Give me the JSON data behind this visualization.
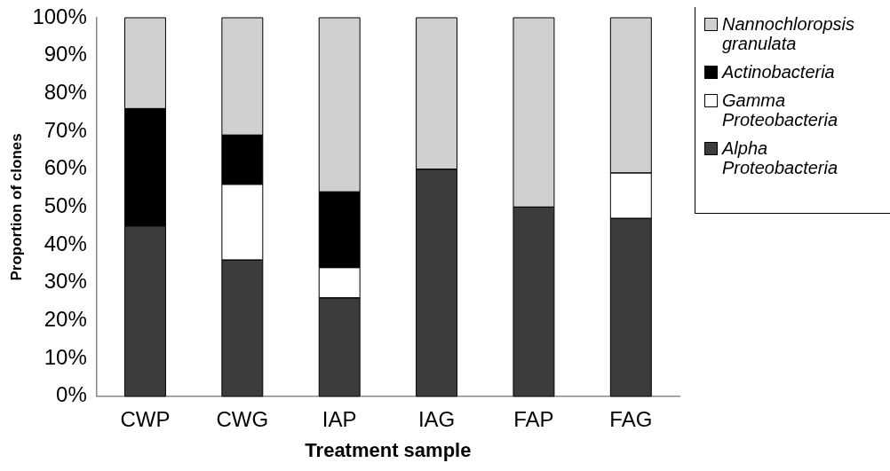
{
  "chart_data": {
    "type": "bar",
    "stacked": true,
    "xlabel": "Treatment sample",
    "ylabel": "Proportion of clones",
    "categories": [
      "CWP",
      "CWG",
      "IAP",
      "IAG",
      "FAP",
      "FAG"
    ],
    "series": [
      {
        "name": "Alpha Proteobacteria",
        "color": "#3c3c3c",
        "values": [
          45,
          36,
          26,
          60,
          50,
          47
        ]
      },
      {
        "name": "Gamma Proteobacteria",
        "color": "#ffffff",
        "values": [
          0,
          20,
          8,
          0,
          0,
          12
        ]
      },
      {
        "name": "Actinobacteria",
        "color": "#000000",
        "values": [
          31,
          13,
          20,
          0,
          0,
          0
        ]
      },
      {
        "name": "Nannochloropsis granulata",
        "color": "#d0d0d0",
        "values": [
          24,
          31,
          46,
          40,
          50,
          41
        ]
      }
    ],
    "ylim": [
      0,
      100
    ],
    "yticks": [
      {
        "value": 0,
        "label": "0%"
      },
      {
        "value": 10,
        "label": "10%"
      },
      {
        "value": 20,
        "label": "20%"
      },
      {
        "value": 30,
        "label": "30%"
      },
      {
        "value": 40,
        "label": "40%"
      },
      {
        "value": 50,
        "label": "50%"
      },
      {
        "value": 60,
        "label": "60%"
      },
      {
        "value": 70,
        "label": "70%"
      },
      {
        "value": 80,
        "label": "80%"
      },
      {
        "value": 90,
        "label": "90%"
      },
      {
        "value": 100,
        "label": "100%"
      }
    ],
    "grid": false,
    "legend": "top right"
  }
}
